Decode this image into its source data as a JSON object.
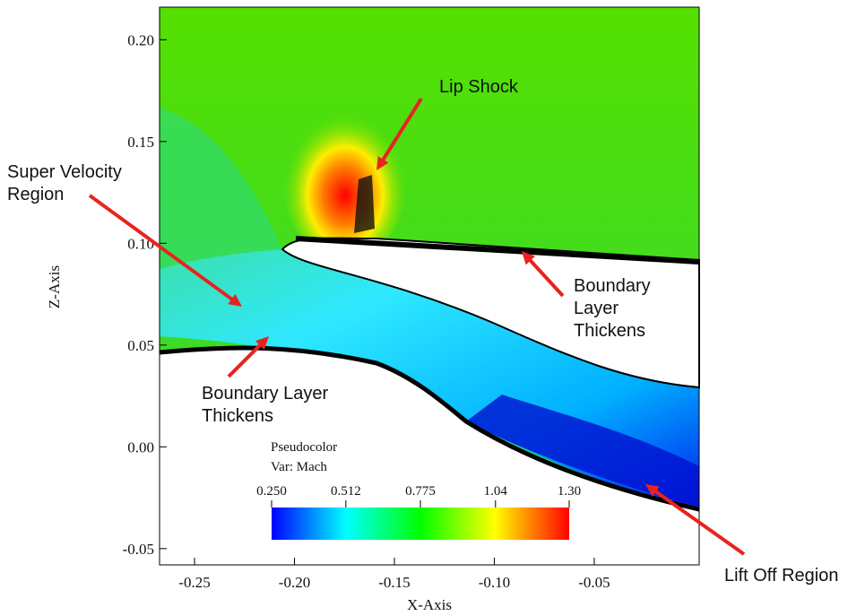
{
  "chart_data": {
    "type": "contour",
    "x_label": "X-Axis",
    "y_label": "Z-Axis",
    "xlim": [
      -0.2675,
      0.0025
    ],
    "ylim": [
      -0.058,
      0.216
    ],
    "xticks": [
      -0.25,
      {
        "value": -0.2,
        "label": "-0.20"
      },
      -0.15,
      {
        "value": -0.1,
        "label": "-0.10"
      },
      -0.05
    ],
    "yticks": [
      {
        "value": -0.05,
        "label": "-0.05"
      },
      {
        "value": 0,
        "label": "0.00"
      },
      {
        "value": 0.05,
        "label": "0.05"
      },
      {
        "value": 0.1,
        "label": "0.10"
      },
      {
        "value": 0.15,
        "label": "0.15"
      },
      {
        "value": 0.2,
        "label": "0.20"
      }
    ],
    "colorbar": {
      "title": "Pseudocolor",
      "subtitle": "Var: Mach",
      "ticks": [
        {
          "value": 0.25,
          "label": "0.250"
        },
        {
          "value": 0.512,
          "label": "0.512"
        },
        {
          "value": 0.775,
          "label": "0.775"
        },
        1.04,
        {
          "value": 1.3,
          "label": "1.30"
        }
      ],
      "colors": [
        "#0000ff",
        "#00ffff",
        "#00ff00",
        "#ffff00",
        "#ff0000"
      ]
    },
    "annotation_color": "#e8231f",
    "annotations": [
      {
        "lines": [
          "Lip Shock"
        ]
      },
      {
        "lines": [
          "Super Velocity",
          "Region"
        ]
      },
      {
        "lines": [
          "Boundary",
          "Layer",
          "Thickens"
        ]
      },
      {
        "lines": [
          "Boundary Layer",
          "Thickens"
        ]
      },
      {
        "lines": [
          "Lift Off Region"
        ]
      }
    ]
  }
}
